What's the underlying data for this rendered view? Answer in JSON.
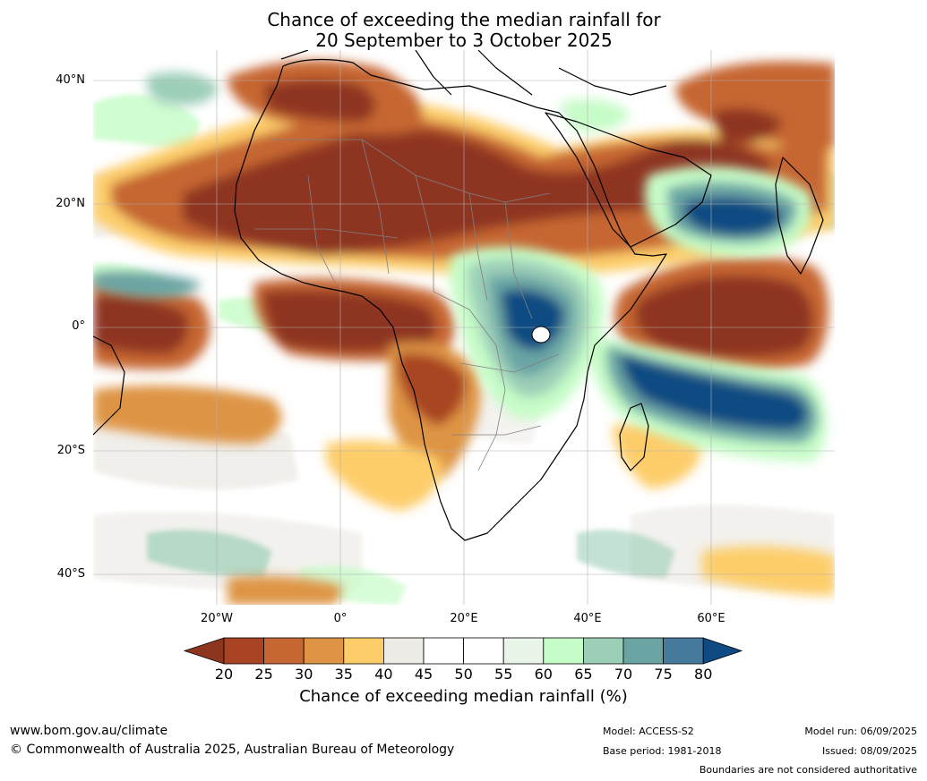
{
  "title": {
    "line1": "Chance of exceeding the median rainfall for",
    "line2": "20 September to 3 October 2025"
  },
  "map": {
    "lat_labels": [
      "40°N",
      "20°N",
      "0°",
      "20°S",
      "40°S"
    ],
    "lon_labels": [
      "20°W",
      "0°",
      "20°E",
      "40°E",
      "60°E"
    ],
    "lat_values": [
      40,
      20,
      0,
      -20,
      -40
    ],
    "lon_values": [
      -20,
      0,
      20,
      40,
      60
    ],
    "extent": {
      "lon_min": -40,
      "lon_max": 80,
      "lat_min": -45,
      "lat_max": 45
    },
    "regions": [
      {
        "name": "sahel-north-africa-dry",
        "category": 20,
        "lon": [
          -15,
          35
        ],
        "lat": [
          15,
          30
        ]
      },
      {
        "name": "saudi-arabia-dry",
        "category": 20,
        "lon": [
          35,
          55
        ],
        "lat": [
          18,
          32
        ]
      },
      {
        "name": "mediterranean-north-africa-dry",
        "category": 25,
        "lon": [
          -5,
          20
        ],
        "lat": [
          30,
          40
        ]
      },
      {
        "name": "gulf-of-guinea-dry",
        "category": 20,
        "lon": [
          -15,
          15
        ],
        "lat": [
          0,
          6
        ]
      },
      {
        "name": "atlantic-equatorial-dry",
        "category": 20,
        "lon": [
          -40,
          -25
        ],
        "lat": [
          0,
          5
        ]
      },
      {
        "name": "central-africa-dry",
        "category": 25,
        "lon": [
          5,
          20
        ],
        "lat": [
          -10,
          5
        ]
      },
      {
        "name": "western-indian-ocean-dry",
        "category": 20,
        "lon": [
          50,
          75
        ],
        "lat": [
          -5,
          8
        ]
      },
      {
        "name": "east-africa-wet",
        "category": 80,
        "lon": [
          25,
          40
        ],
        "lat": [
          -5,
          10
        ]
      },
      {
        "name": "arabian-sea-wet",
        "category": 80,
        "lon": [
          55,
          72
        ],
        "lat": [
          15,
          22
        ]
      },
      {
        "name": "southern-indian-ocean-wet",
        "category": 80,
        "lon": [
          45,
          80
        ],
        "lat": [
          -20,
          -5
        ]
      }
    ]
  },
  "colorbar": {
    "ticks": [
      "20",
      "25",
      "30",
      "35",
      "40",
      "45",
      "50",
      "55",
      "60",
      "65",
      "70",
      "75",
      "80"
    ],
    "label": "Chance of exceeding median rainfall (%)",
    "colors": {
      "lt20": "#8e3520",
      "c20_25": "#a84424",
      "c25_30": "#c66632",
      "c30_35": "#de9444",
      "c35_40": "#fdcd6a",
      "c40_45": "#edebe6",
      "c45_50": "#ffffff",
      "c50_55": "#ffffff",
      "c55_60": "#e8f5e8",
      "c60_65": "#c6fcc7",
      "c65_70": "#9ccfb8",
      "c70_75": "#6aa5a4",
      "c75_80": "#457a9c",
      "gt80": "#0f4b82"
    }
  },
  "footer": {
    "website": "www.bom.gov.au/climate",
    "copyright": "© Commonwealth of Australia 2025, Australian Bureau of Meteorology",
    "model": "Model: ACCESS-S2",
    "base_period": "Base period: 1981-2018",
    "model_run": "Model run: 06/09/2025",
    "issued": "Issued: 08/09/2025",
    "disclaimer": "Boundaries are not considered authoritative"
  }
}
